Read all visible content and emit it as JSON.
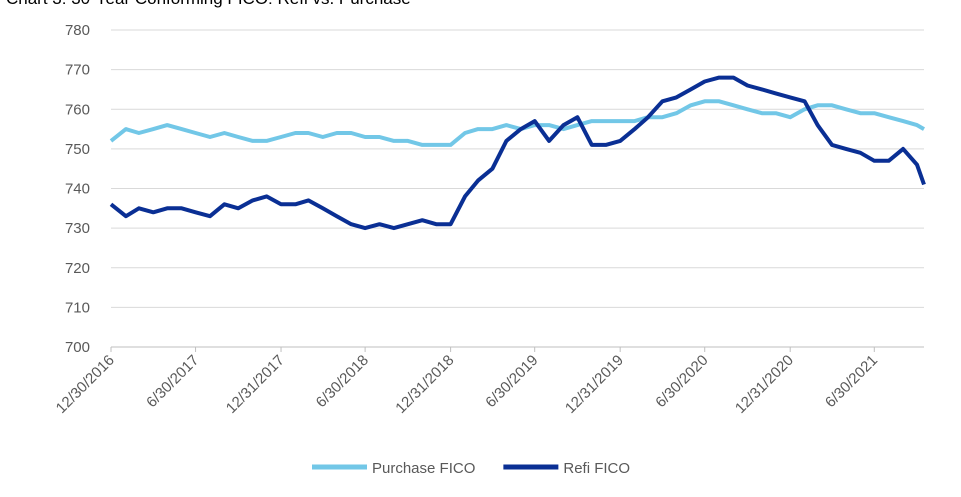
{
  "chart_data": {
    "type": "line",
    "title": "Chart 3: 30-Year Conforming FICO: Refi vs. Purchase",
    "x": [
      "12/30/2016",
      "1/31/2017",
      "2/28/2017",
      "3/31/2017",
      "4/30/2017",
      "5/31/2017",
      "6/30/2017",
      "7/31/2017",
      "8/31/2017",
      "9/30/2017",
      "10/31/2017",
      "11/30/2017",
      "12/31/2017",
      "1/31/2018",
      "2/28/2018",
      "3/31/2018",
      "4/30/2018",
      "5/31/2018",
      "6/30/2018",
      "7/31/2018",
      "8/31/2018",
      "9/30/2018",
      "10/31/2018",
      "11/30/2018",
      "12/31/2018",
      "1/31/2019",
      "2/28/2019",
      "3/31/2019",
      "4/30/2019",
      "5/31/2019",
      "6/30/2019",
      "7/31/2019",
      "8/31/2019",
      "9/30/2019",
      "10/31/2019",
      "11/30/2019",
      "12/31/2019",
      "1/31/2020",
      "2/29/2020",
      "3/31/2020",
      "4/30/2020",
      "5/31/2020",
      "6/30/2020",
      "7/31/2020",
      "8/31/2020",
      "9/30/2020",
      "10/31/2020",
      "11/30/2020",
      "12/31/2020",
      "1/31/2021",
      "2/28/2021",
      "3/31/2021",
      "4/30/2021",
      "5/31/2021",
      "6/30/2021",
      "7/31/2021",
      "8/31/2021",
      "9/30/2021",
      "10/15/2021"
    ],
    "series": [
      {
        "name": "Purchase FICO",
        "color": "#72c7e7",
        "values": [
          752,
          755,
          754,
          755,
          756,
          755,
          754,
          753,
          754,
          753,
          752,
          752,
          753,
          754,
          754,
          753,
          754,
          754,
          753,
          753,
          752,
          752,
          751,
          751,
          751,
          754,
          755,
          755,
          756,
          755,
          756,
          756,
          755,
          756,
          757,
          757,
          757,
          757,
          758,
          758,
          759,
          761,
          762,
          762,
          761,
          760,
          759,
          759,
          758,
          760,
          761,
          761,
          760,
          759,
          759,
          758,
          757,
          756,
          755
        ]
      },
      {
        "name": "Refi FICO",
        "color": "#0a2f94",
        "values": [
          736,
          733,
          735,
          734,
          735,
          735,
          734,
          733,
          736,
          735,
          737,
          738,
          736,
          736,
          737,
          735,
          733,
          731,
          730,
          731,
          730,
          731,
          732,
          731,
          731,
          738,
          742,
          745,
          752,
          755,
          757,
          752,
          756,
          758,
          751,
          751,
          752,
          755,
          758,
          762,
          763,
          765,
          767,
          768,
          768,
          766,
          765,
          764,
          763,
          762,
          756,
          751,
          750,
          749,
          747,
          747,
          750,
          746,
          741
        ]
      }
    ],
    "xlim": [
      "12/30/2016",
      "10/15/2021"
    ],
    "xticks": [
      "12/30/2016",
      "6/30/2017",
      "12/31/2017",
      "6/30/2018",
      "12/31/2018",
      "6/30/2019",
      "12/31/2019",
      "6/30/2020",
      "12/31/2020",
      "6/30/2021"
    ],
    "ylim": [
      700,
      780
    ],
    "yticks": [
      700,
      710,
      720,
      730,
      740,
      750,
      760,
      770,
      780
    ],
    "grid": true,
    "legend": "bottom"
  }
}
